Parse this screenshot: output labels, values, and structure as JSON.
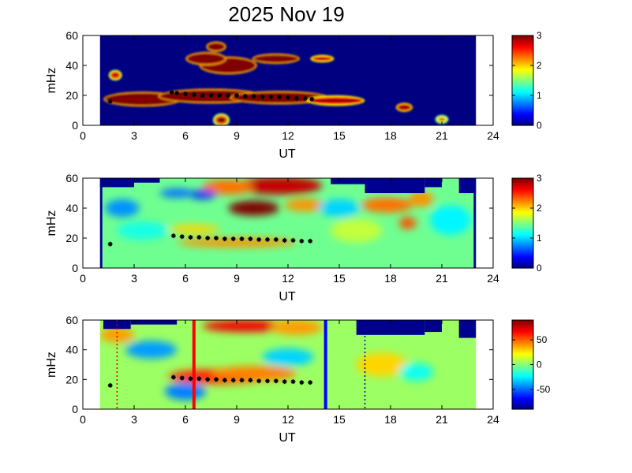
{
  "figure": {
    "title": "2025 Nov 19"
  },
  "colors": {
    "background_fill": "#00008f",
    "frame": "#000000",
    "marker": "#000000",
    "line_red": "#ff0000",
    "line_blue": "#0000ff"
  },
  "colormap": "jet",
  "chart_data": [
    {
      "type": "heatmap",
      "xlabel": "UT",
      "ylabel": "mHz",
      "xlim": [
        0,
        24
      ],
      "ylim": [
        0,
        60
      ],
      "xticks": [
        0,
        3,
        6,
        9,
        12,
        15,
        18,
        21,
        24
      ],
      "yticks": [
        0,
        20,
        40,
        60
      ],
      "data_range_ut": [
        1,
        23
      ],
      "colorbar": {
        "range": [
          0,
          3
        ],
        "ticks": [
          0,
          1,
          2,
          3
        ]
      },
      "background_value": 0,
      "blobs": [
        {
          "x": 8.5,
          "y": 40,
          "rx": 1.6,
          "ry": 5,
          "v": 3
        },
        {
          "x": 7.2,
          "y": 44.5,
          "rx": 1.1,
          "ry": 3.5,
          "v": 3
        },
        {
          "x": 11.3,
          "y": 44.5,
          "rx": 1.3,
          "ry": 2.5,
          "v": 3
        },
        {
          "x": 7.8,
          "y": 52.5,
          "rx": 0.5,
          "ry": 2.5,
          "v": 3
        },
        {
          "x": 1.9,
          "y": 33.5,
          "rx": 0.3,
          "ry": 2.5,
          "v": 2.4
        },
        {
          "x": 8.1,
          "y": 3.5,
          "rx": 0.4,
          "ry": 3.5,
          "v": 2.2
        },
        {
          "x": 18.8,
          "y": 12,
          "rx": 0.4,
          "ry": 2,
          "v": 2.8
        },
        {
          "x": 21.0,
          "y": 4,
          "rx": 0.3,
          "ry": 2,
          "v": 2.0
        },
        {
          "x": 14.0,
          "y": 44.5,
          "rx": 0.6,
          "ry": 1.5,
          "v": 2.6
        },
        {
          "x": 3.5,
          "y": 17.5,
          "rx": 2.2,
          "ry": 4,
          "v": 3
        },
        {
          "x": 7.5,
          "y": 19.5,
          "rx": 3.0,
          "ry": 4,
          "v": 3
        },
        {
          "x": 11.5,
          "y": 18.5,
          "rx": 2.8,
          "ry": 3.5,
          "v": 3
        },
        {
          "x": 14.8,
          "y": 16.5,
          "rx": 1.6,
          "ry": 2.5,
          "v": 2.6
        }
      ],
      "markers": {
        "x": [
          5.2,
          5.5,
          6.0,
          6.5,
          7.0,
          7.5,
          8.0,
          8.5,
          9.0,
          9.5,
          10.0,
          10.5,
          11.0,
          11.5,
          12.0,
          12.5,
          13.0,
          13.4
        ],
        "y": [
          22,
          21.5,
          21,
          20.5,
          20,
          20,
          20,
          20,
          20,
          19.5,
          19.5,
          19,
          19,
          19,
          18.5,
          18,
          18,
          17.5
        ]
      },
      "extra_markers": {
        "x": [
          1.6
        ],
        "y": [
          16
        ]
      }
    },
    {
      "type": "heatmap",
      "xlabel": "UT",
      "ylabel": "mHz",
      "xlim": [
        0,
        24
      ],
      "ylim": [
        0,
        60
      ],
      "xticks": [
        0,
        3,
        6,
        9,
        12,
        15,
        18,
        21,
        24
      ],
      "yticks": [
        0,
        20,
        40,
        60
      ],
      "data_range_ut": [
        1,
        23
      ],
      "colorbar": {
        "range": [
          0,
          3
        ],
        "ticks": [
          0,
          1,
          2,
          3
        ]
      },
      "background_value": 1.45,
      "blobs": [
        {
          "x": 10.0,
          "y": 40,
          "rx": 1.5,
          "ry": 5,
          "v": 3.0
        },
        {
          "x": 11.5,
          "y": 55,
          "rx": 2.5,
          "ry": 6,
          "v": 2.8
        },
        {
          "x": 8.5,
          "y": 54,
          "rx": 1.5,
          "ry": 5,
          "v": 2.3
        },
        {
          "x": 13.0,
          "y": 42,
          "rx": 1.2,
          "ry": 4,
          "v": 2.2
        },
        {
          "x": 17.8,
          "y": 42,
          "rx": 1.5,
          "ry": 5,
          "v": 2.3
        },
        {
          "x": 19.0,
          "y": 30,
          "rx": 0.5,
          "ry": 4,
          "v": 2.4
        },
        {
          "x": 19.8,
          "y": 46,
          "rx": 0.7,
          "ry": 5,
          "v": 2.2
        },
        {
          "x": 9.0,
          "y": 17,
          "rx": 3.5,
          "ry": 3,
          "v": 2.2
        },
        {
          "x": 6.5,
          "y": 26,
          "rx": 1.5,
          "ry": 3,
          "v": 2.0
        },
        {
          "x": 7.0,
          "y": 49,
          "rx": 0.8,
          "ry": 3,
          "v": 0.5
        },
        {
          "x": 2.3,
          "y": 40,
          "rx": 1.0,
          "ry": 6,
          "v": 0.8
        },
        {
          "x": 5.5,
          "y": 50,
          "rx": 1.0,
          "ry": 3,
          "v": 0.7
        },
        {
          "x": 15.0,
          "y": 40,
          "rx": 1.2,
          "ry": 6,
          "v": 1.0
        },
        {
          "x": 21.5,
          "y": 32,
          "rx": 1.2,
          "ry": 10,
          "v": 1.1
        },
        {
          "x": 16.0,
          "y": 25,
          "rx": 1.5,
          "ry": 8,
          "v": 1.7
        },
        {
          "x": 3.5,
          "y": 25,
          "rx": 1.5,
          "ry": 6,
          "v": 1.2
        }
      ],
      "masks": [
        {
          "x0": 1.0,
          "x1": 3.0,
          "y0": 54,
          "y1": 60
        },
        {
          "x0": 3.0,
          "x1": 4.5,
          "y0": 57,
          "y1": 60
        },
        {
          "x0": 14.5,
          "x1": 16.5,
          "y0": 56,
          "y1": 60
        },
        {
          "x0": 16.5,
          "x1": 20.0,
          "y0": 50,
          "y1": 60
        },
        {
          "x0": 20.0,
          "x1": 21.0,
          "y0": 54,
          "y1": 60
        },
        {
          "x0": 22.0,
          "x1": 23.0,
          "y0": 50,
          "y1": 60
        }
      ],
      "markers": {
        "x": [
          5.3,
          5.8,
          6.3,
          6.8,
          7.3,
          7.8,
          8.3,
          8.8,
          9.3,
          9.8,
          10.3,
          10.8,
          11.3,
          11.8,
          12.3,
          12.8,
          13.3
        ],
        "y": [
          21.5,
          21,
          20.5,
          20.5,
          20,
          20,
          19.5,
          19.5,
          19.5,
          19.5,
          19,
          19,
          19,
          18.5,
          18.5,
          18,
          18
        ]
      },
      "extra_markers": {
        "x": [
          1.6
        ],
        "y": [
          16
        ]
      }
    },
    {
      "type": "heatmap",
      "xlabel": "UT",
      "ylabel": "mHz",
      "xlim": [
        0,
        24
      ],
      "ylim": [
        0,
        60
      ],
      "xticks": [
        0,
        3,
        6,
        9,
        12,
        15,
        18,
        21,
        24
      ],
      "yticks": [
        0,
        20,
        40,
        60
      ],
      "data_range_ut": [
        1,
        23
      ],
      "colorbar": {
        "range": [
          -90,
          90
        ],
        "ticks": [
          50,
          0,
          -50
        ]
      },
      "background_value": 5,
      "blobs": [
        {
          "x": 8.0,
          "y": 22,
          "rx": 3.0,
          "ry": 5,
          "v": 60
        },
        {
          "x": 10.0,
          "y": 24,
          "rx": 2.5,
          "ry": 5,
          "v": 45
        },
        {
          "x": 9.5,
          "y": 56,
          "rx": 2.5,
          "ry": 4,
          "v": 70
        },
        {
          "x": 12.5,
          "y": 55,
          "rx": 1.5,
          "ry": 5,
          "v": 40
        },
        {
          "x": 4.0,
          "y": 40,
          "rx": 1.5,
          "ry": 6,
          "v": -40
        },
        {
          "x": 12.0,
          "y": 35,
          "rx": 1.5,
          "ry": 6,
          "v": -30
        },
        {
          "x": 6.0,
          "y": 12,
          "rx": 1.2,
          "ry": 6,
          "v": -45
        },
        {
          "x": 2.0,
          "y": 50,
          "rx": 1.0,
          "ry": 5,
          "v": 40
        },
        {
          "x": 17.5,
          "y": 30,
          "rx": 1.5,
          "ry": 8,
          "v": 30
        },
        {
          "x": 19.5,
          "y": 25,
          "rx": 1.0,
          "ry": 6,
          "v": -20
        }
      ],
      "masks": [
        {
          "x0": 1.2,
          "x1": 2.8,
          "y0": 54,
          "y1": 60
        },
        {
          "x0": 2.8,
          "x1": 5.5,
          "y0": 57,
          "y1": 60
        },
        {
          "x0": 16.0,
          "x1": 20.0,
          "y0": 50,
          "y1": 60
        },
        {
          "x0": 20.0,
          "x1": 21.0,
          "y0": 52,
          "y1": 60
        },
        {
          "x0": 22.0,
          "x1": 23.0,
          "y0": 48,
          "y1": 60
        }
      ],
      "markers": {
        "x": [
          5.3,
          5.8,
          6.3,
          6.8,
          7.3,
          7.8,
          8.3,
          8.8,
          9.3,
          9.8,
          10.3,
          10.8,
          11.3,
          11.8,
          12.3,
          12.8,
          13.3
        ],
        "y": [
          21.5,
          21,
          20.5,
          20.5,
          20,
          20,
          19.5,
          19.5,
          19.5,
          19.5,
          19,
          19,
          19,
          18.5,
          18.5,
          18,
          18
        ]
      },
      "extra_markers": {
        "x": [
          1.6
        ],
        "y": [
          16
        ]
      },
      "vlines": [
        {
          "x": 6.5,
          "color": "#ff0000",
          "style": "solid"
        },
        {
          "x": 14.2,
          "color": "#0000ff",
          "style": "solid"
        },
        {
          "x": 2.0,
          "color": "#cc0000",
          "style": "dotted"
        },
        {
          "x": 16.5,
          "color": "#000080",
          "style": "dotted"
        }
      ]
    }
  ]
}
